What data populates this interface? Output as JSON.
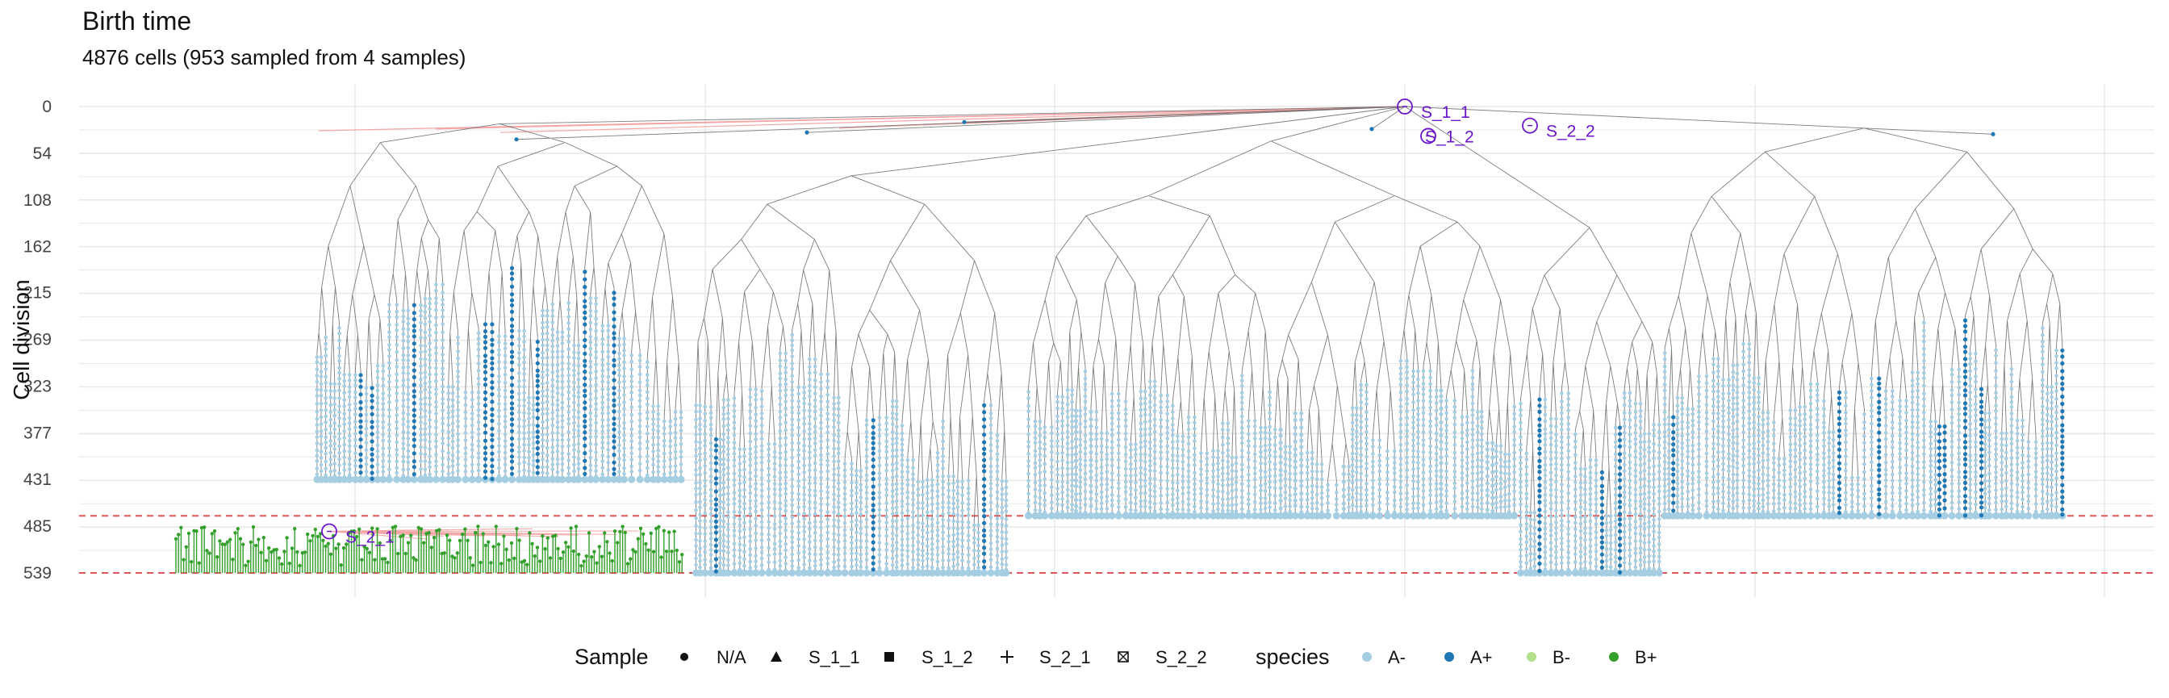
{
  "title": "Birth time",
  "subtitle": "4876 cells (953 sampled from 4 samples)",
  "colors": {
    "A-": "#a6cee3",
    "A+": "#1f78b4",
    "B-": "#b2df8a",
    "B+": "#33a02c",
    "edge": "#666666",
    "sample_link": "#f4a6a6",
    "sample_marker": "#6a16c9",
    "ref_line": "#e05555",
    "grid": "#e9e9e9"
  },
  "chart_data": {
    "type": "tree",
    "ylabel": "Cell division",
    "y_ticks": [
      0,
      54,
      108,
      162,
      215,
      269,
      323,
      377,
      431,
      485,
      539
    ],
    "ylim": [
      0,
      539
    ],
    "y_reversed": true,
    "reference_lines_y": [
      473,
      539
    ],
    "samples": [
      {
        "name": "S_1_1",
        "time": 0
      },
      {
        "name": "S_1_2",
        "time": 34
      },
      {
        "name": "S_2_2",
        "time": 22
      },
      {
        "name": "S_2_1",
        "time": 491
      }
    ],
    "legend": {
      "sample": {
        "title": "Sample",
        "entries": [
          {
            "label": "N/A",
            "shape": "circle"
          },
          {
            "label": "S_1_1",
            "shape": "triangle"
          },
          {
            "label": "S_1_2",
            "shape": "square"
          },
          {
            "label": "S_2_1",
            "shape": "plus"
          },
          {
            "label": "S_2_2",
            "shape": "boxed-x"
          }
        ]
      },
      "species": {
        "title": "species",
        "entries": [
          {
            "label": "A-",
            "color": "#a6cee3"
          },
          {
            "label": "A+",
            "color": "#1f78b4"
          },
          {
            "label": "B-",
            "color": "#b2df8a"
          },
          {
            "label": "B+",
            "color": "#33a02c"
          }
        ]
      }
    },
    "lineage_groups": [
      {
        "span": [
          390,
          848
        ],
        "species": "A-",
        "highlight": "A+",
        "start_time": 20,
        "end_time": 431
      },
      {
        "span": [
          860,
          1250
        ],
        "species": "A-",
        "highlight": "A+",
        "start_time": 80,
        "end_time": 539
      },
      {
        "span": [
          1270,
          1880
        ],
        "species": "A-",
        "highlight": "A-",
        "start_time": 40,
        "end_time": 473
      },
      {
        "span": [
          1880,
          2060
        ],
        "species": "A-",
        "highlight": "A+",
        "start_time": 140,
        "end_time": 539
      },
      {
        "span": [
          2060,
          2560
        ],
        "species": "A-",
        "highlight": "A+",
        "start_time": 25,
        "end_time": 473
      }
    ],
    "b_population": {
      "span": [
        218,
        848
      ],
      "species": "B+",
      "start_time": 485,
      "end_time": 539
    }
  }
}
